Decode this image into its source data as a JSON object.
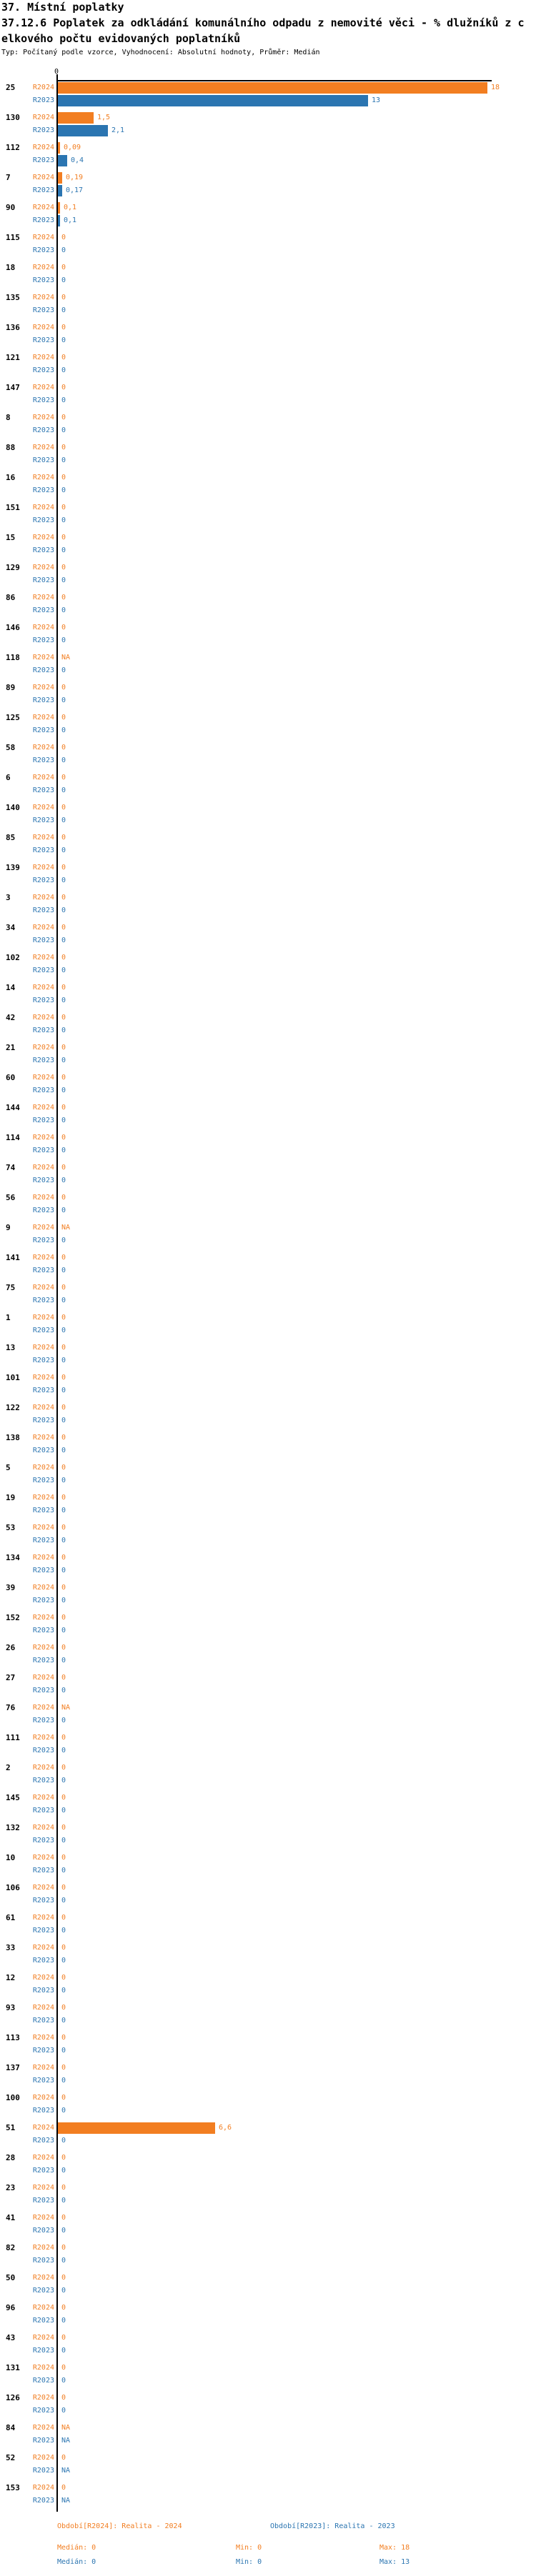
{
  "header": {
    "title": "37. Místní poplatky",
    "subtitle_line1": "37.12.6 Poplatek za odkládání komunálního odpadu z nemovité věci - % dlužníků z c",
    "subtitle_line2": "elkového počtu evidovaných poplatníků",
    "meta": "Typ: Počítaný podle vzorce, Vyhodnocení: Absolutní hodnoty, Průměr: Medián"
  },
  "legend": {
    "r2024": {
      "label": "Období[R2024]: Realita - 2024",
      "median": "Medián: 0",
      "min": "Min: 0",
      "max": "Max: 18"
    },
    "r2023": {
      "label": "Období[R2023]: Realita - 2023",
      "median": "Medián: 0",
      "min": "Min: 0",
      "max": "Max: 13"
    }
  },
  "chart_data": {
    "type": "bar",
    "orientation": "horizontal",
    "series_names": [
      "R2024",
      "R2023"
    ],
    "colors": {
      "r2024": "#F27E21",
      "r2023": "#2B75B1",
      "axis": "#000000"
    },
    "axis": {
      "min": 0,
      "max": 18,
      "tick_labels": [
        "0"
      ]
    },
    "na_text": "NA",
    "groups": [
      {
        "id": "25",
        "r2024": 18,
        "r2023": 13
      },
      {
        "id": "130",
        "r2024": 1.5,
        "r2023": 2.1
      },
      {
        "id": "112",
        "r2024": 0.09,
        "r2023": 0.4
      },
      {
        "id": "7",
        "r2024": 0.19,
        "r2023": 0.17
      },
      {
        "id": "90",
        "r2024": 0.1,
        "r2023": 0.1
      },
      {
        "id": "115",
        "r2024": 0,
        "r2023": 0
      },
      {
        "id": "18",
        "r2024": 0,
        "r2023": 0
      },
      {
        "id": "135",
        "r2024": 0,
        "r2023": 0
      },
      {
        "id": "136",
        "r2024": 0,
        "r2023": 0
      },
      {
        "id": "121",
        "r2024": 0,
        "r2023": 0
      },
      {
        "id": "147",
        "r2024": 0,
        "r2023": 0
      },
      {
        "id": "8",
        "r2024": 0,
        "r2023": 0
      },
      {
        "id": "88",
        "r2024": 0,
        "r2023": 0
      },
      {
        "id": "16",
        "r2024": 0,
        "r2023": 0
      },
      {
        "id": "151",
        "r2024": 0,
        "r2023": 0
      },
      {
        "id": "15",
        "r2024": 0,
        "r2023": 0
      },
      {
        "id": "129",
        "r2024": 0,
        "r2023": 0
      },
      {
        "id": "86",
        "r2024": 0,
        "r2023": 0
      },
      {
        "id": "146",
        "r2024": 0,
        "r2023": 0
      },
      {
        "id": "118",
        "r2024": "NA",
        "r2023": 0
      },
      {
        "id": "89",
        "r2024": 0,
        "r2023": 0
      },
      {
        "id": "125",
        "r2024": 0,
        "r2023": 0
      },
      {
        "id": "58",
        "r2024": 0,
        "r2023": 0
      },
      {
        "id": "6",
        "r2024": 0,
        "r2023": 0
      },
      {
        "id": "140",
        "r2024": 0,
        "r2023": 0
      },
      {
        "id": "85",
        "r2024": 0,
        "r2023": 0
      },
      {
        "id": "139",
        "r2024": 0,
        "r2023": 0
      },
      {
        "id": "3",
        "r2024": 0,
        "r2023": 0
      },
      {
        "id": "34",
        "r2024": 0,
        "r2023": 0
      },
      {
        "id": "102",
        "r2024": 0,
        "r2023": 0
      },
      {
        "id": "14",
        "r2024": 0,
        "r2023": 0
      },
      {
        "id": "42",
        "r2024": 0,
        "r2023": 0
      },
      {
        "id": "21",
        "r2024": 0,
        "r2023": 0
      },
      {
        "id": "60",
        "r2024": 0,
        "r2023": 0
      },
      {
        "id": "144",
        "r2024": 0,
        "r2023": 0
      },
      {
        "id": "114",
        "r2024": 0,
        "r2023": 0
      },
      {
        "id": "74",
        "r2024": 0,
        "r2023": 0
      },
      {
        "id": "56",
        "r2024": 0,
        "r2023": 0
      },
      {
        "id": "9",
        "r2024": "NA",
        "r2023": 0
      },
      {
        "id": "141",
        "r2024": 0,
        "r2023": 0
      },
      {
        "id": "75",
        "r2024": 0,
        "r2023": 0
      },
      {
        "id": "1",
        "r2024": 0,
        "r2023": 0
      },
      {
        "id": "13",
        "r2024": 0,
        "r2023": 0
      },
      {
        "id": "101",
        "r2024": 0,
        "r2023": 0
      },
      {
        "id": "122",
        "r2024": 0,
        "r2023": 0
      },
      {
        "id": "138",
        "r2024": 0,
        "r2023": 0
      },
      {
        "id": "5",
        "r2024": 0,
        "r2023": 0
      },
      {
        "id": "19",
        "r2024": 0,
        "r2023": 0
      },
      {
        "id": "53",
        "r2024": 0,
        "r2023": 0
      },
      {
        "id": "134",
        "r2024": 0,
        "r2023": 0
      },
      {
        "id": "39",
        "r2024": 0,
        "r2023": 0
      },
      {
        "id": "152",
        "r2024": 0,
        "r2023": 0
      },
      {
        "id": "26",
        "r2024": 0,
        "r2023": 0
      },
      {
        "id": "27",
        "r2024": 0,
        "r2023": 0
      },
      {
        "id": "76",
        "r2024": "NA",
        "r2023": 0
      },
      {
        "id": "111",
        "r2024": 0,
        "r2023": 0
      },
      {
        "id": "2",
        "r2024": 0,
        "r2023": 0
      },
      {
        "id": "145",
        "r2024": 0,
        "r2023": 0
      },
      {
        "id": "132",
        "r2024": 0,
        "r2023": 0
      },
      {
        "id": "10",
        "r2024": 0,
        "r2023": 0
      },
      {
        "id": "106",
        "r2024": 0,
        "r2023": 0
      },
      {
        "id": "61",
        "r2024": 0,
        "r2023": 0
      },
      {
        "id": "33",
        "r2024": 0,
        "r2023": 0
      },
      {
        "id": "12",
        "r2024": 0,
        "r2023": 0
      },
      {
        "id": "93",
        "r2024": 0,
        "r2023": 0
      },
      {
        "id": "113",
        "r2024": 0,
        "r2023": 0
      },
      {
        "id": "137",
        "r2024": 0,
        "r2023": 0
      },
      {
        "id": "100",
        "r2024": 0,
        "r2023": 0
      },
      {
        "id": "51",
        "r2024": 6.6,
        "r2023": 0
      },
      {
        "id": "28",
        "r2024": 0,
        "r2023": 0
      },
      {
        "id": "23",
        "r2024": 0,
        "r2023": 0
      },
      {
        "id": "41",
        "r2024": 0,
        "r2023": 0
      },
      {
        "id": "82",
        "r2024": 0,
        "r2023": 0
      },
      {
        "id": "50",
        "r2024": 0,
        "r2023": 0
      },
      {
        "id": "96",
        "r2024": 0,
        "r2023": 0
      },
      {
        "id": "43",
        "r2024": 0,
        "r2023": 0
      },
      {
        "id": "131",
        "r2024": 0,
        "r2023": 0
      },
      {
        "id": "126",
        "r2024": 0,
        "r2023": 0
      },
      {
        "id": "84",
        "r2024": "NA",
        "r2023": "NA"
      },
      {
        "id": "52",
        "r2024": 0,
        "r2023": "NA"
      },
      {
        "id": "153",
        "r2024": 0,
        "r2023": "NA"
      }
    ]
  }
}
